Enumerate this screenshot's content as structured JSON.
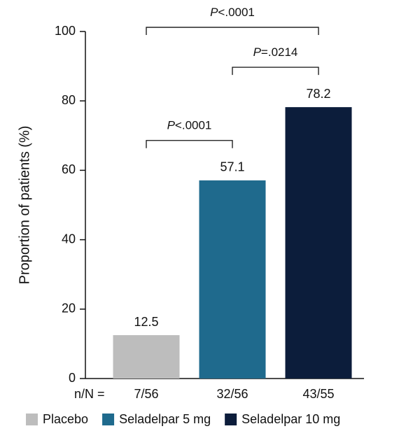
{
  "chart_data": {
    "type": "bar",
    "y_label": "Proportion of patients (%)",
    "categories": [
      "Placebo",
      "Seladelpar 5 mg",
      "Seladelpar 10 mg"
    ],
    "colors": [
      "#bdbdbd",
      "#1f6a8d",
      "#0c1d3b"
    ],
    "values": [
      12.5,
      57.1,
      78.2
    ],
    "n_prefix": "n/N =",
    "n_labels": [
      "7/56",
      "32/56",
      "43/55"
    ],
    "ylim": [
      0,
      100
    ],
    "yticks": [
      0,
      20,
      40,
      60,
      80,
      100
    ],
    "comparisons": [
      {
        "from": 0,
        "to": 1,
        "label": "P<.0001"
      },
      {
        "from": 1,
        "to": 2,
        "label": "P=.0214"
      },
      {
        "from": 0,
        "to": 2,
        "label": "P<.0001"
      }
    ]
  }
}
